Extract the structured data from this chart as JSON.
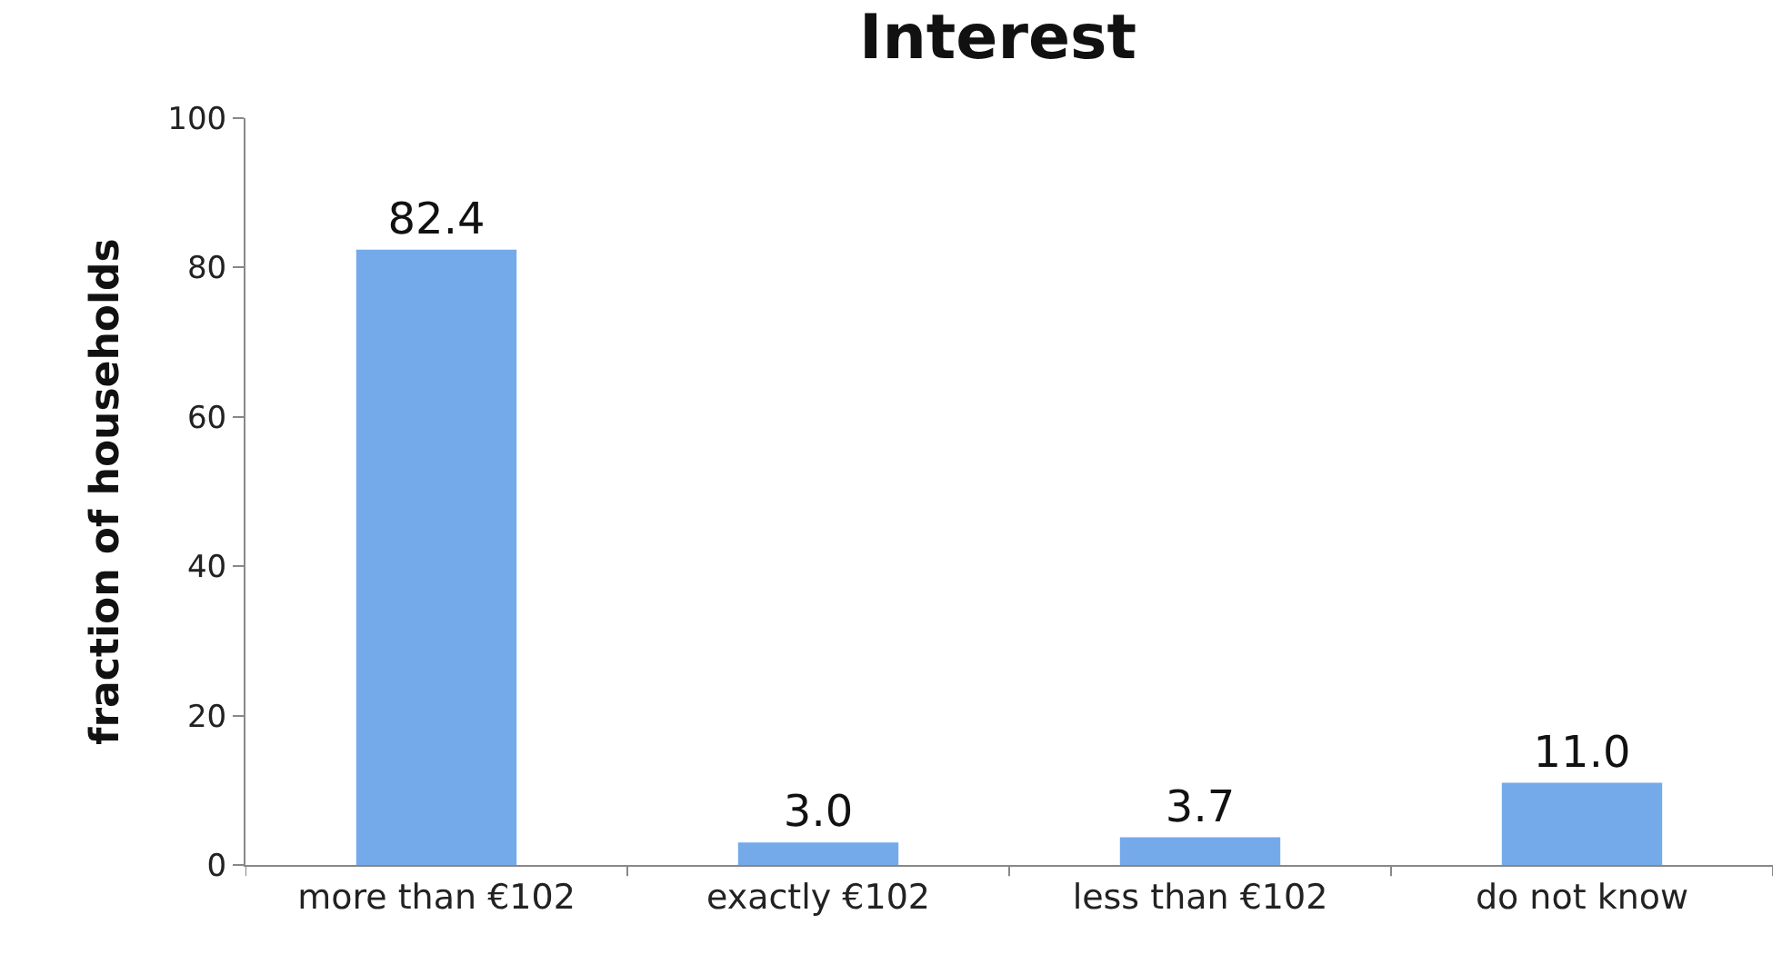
{
  "chart_data": {
    "type": "bar",
    "title": "Interest",
    "ylabel": "fraction of households",
    "categories": [
      "more than €102",
      "exactly €102",
      "less than €102",
      "do not know"
    ],
    "values": [
      82.4,
      3.0,
      3.7,
      11.0
    ],
    "value_labels": [
      "82.4",
      "3.0",
      "3.7",
      "11.0"
    ],
    "color": "#74aaea",
    "ylim": [
      0,
      100
    ],
    "yticks": [
      0,
      20,
      40,
      60,
      80,
      100
    ]
  }
}
